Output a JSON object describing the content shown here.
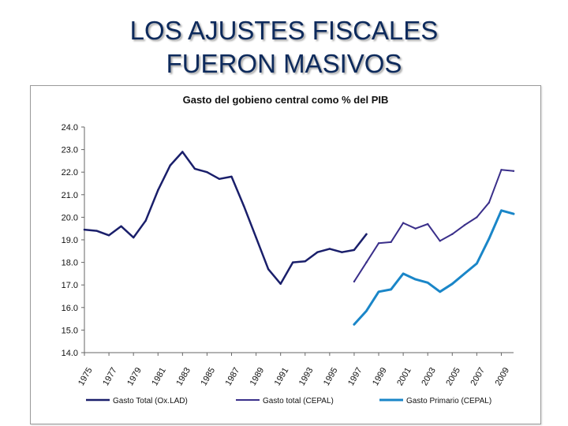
{
  "slide": {
    "title_line1": "LOS AJUSTES FISCALES",
    "title_line2": "FUERON MASIVOS"
  },
  "colors": {
    "series1": "#1a1f6b",
    "series2": "#3a2f8a",
    "series3": "#1a86c8",
    "axis": "#666666"
  },
  "chart_data": {
    "type": "line",
    "title": "Gasto del gobieno central como % del PIB",
    "xlabel": "",
    "ylabel": "",
    "ylim": [
      14.0,
      24.0
    ],
    "yticks": [
      "14.0",
      "15.0",
      "16.0",
      "17.0",
      "18.0",
      "19.0",
      "20.0",
      "21.0",
      "22.0",
      "23.0",
      "24.0"
    ],
    "xlim": [
      1975,
      2010
    ],
    "xticks": [
      "1975",
      "1977",
      "1979",
      "1981",
      "1983",
      "1985",
      "1987",
      "1989",
      "1991",
      "1993",
      "1995",
      "1997",
      "1999",
      "2001",
      "2003",
      "2005",
      "2007",
      "2009"
    ],
    "legend": "bottom",
    "series": [
      {
        "name": "Gasto Total (Ox.LAD)",
        "x": [
          1975,
          1976,
          1977,
          1978,
          1979,
          1980,
          1981,
          1982,
          1983,
          1984,
          1985,
          1986,
          1987,
          1988,
          1989,
          1990,
          1991,
          1992,
          1993,
          1994,
          1995,
          1996,
          1997,
          1998
        ],
        "values": [
          19.45,
          19.4,
          19.2,
          19.6,
          19.1,
          19.85,
          21.2,
          22.3,
          22.9,
          22.15,
          22.0,
          21.7,
          21.8,
          20.5,
          19.1,
          17.7,
          17.05,
          18.0,
          18.05,
          18.45,
          18.6,
          18.45,
          18.55,
          19.25
        ]
      },
      {
        "name": "Gasto total (CEPAL)",
        "x": [
          1997,
          1998,
          1999,
          2000,
          2001,
          2002,
          2003,
          2004,
          2005,
          2006,
          2007,
          2008,
          2009,
          2010
        ],
        "values": [
          17.15,
          18.0,
          18.85,
          18.9,
          19.75,
          19.5,
          19.7,
          18.95,
          19.25,
          19.65,
          20.0,
          20.65,
          22.1,
          22.05
        ]
      },
      {
        "name": "Gasto Primario (CEPAL)",
        "x": [
          1997,
          1998,
          1999,
          2000,
          2001,
          2002,
          2003,
          2004,
          2005,
          2006,
          2007,
          2008,
          2009,
          2010
        ],
        "values": [
          15.25,
          15.85,
          16.7,
          16.8,
          17.5,
          17.25,
          17.1,
          16.7,
          17.05,
          17.5,
          17.95,
          19.05,
          20.3,
          20.15
        ]
      }
    ]
  }
}
